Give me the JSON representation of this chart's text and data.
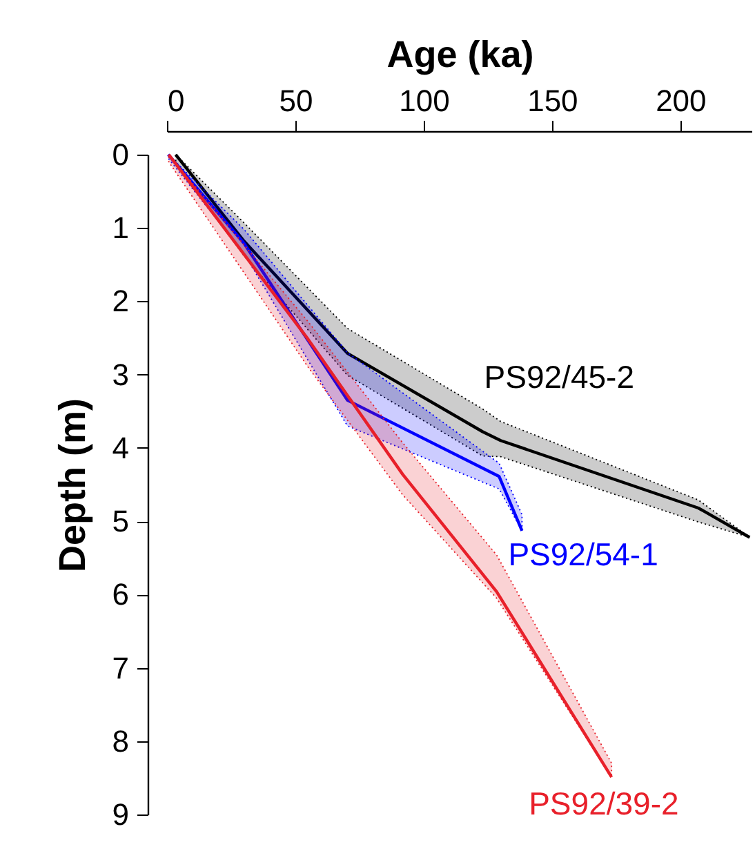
{
  "chart_data": {
    "type": "line",
    "xlabel": "Age (ka)",
    "ylabel": "Depth (m)",
    "xlim": [
      0,
      228
    ],
    "xticks": [
      0,
      50,
      100,
      150,
      200
    ],
    "ylim": [
      9,
      0
    ],
    "yticks": [
      0,
      1,
      2,
      3,
      4,
      5,
      6,
      7,
      8,
      9
    ],
    "grid": false,
    "line_style": "solid",
    "marker": "none",
    "series": [
      {
        "name": "PS92/45-2",
        "color": "#000000",
        "x": [
          3.4,
          30,
          70.3,
          123,
          130,
          207,
          227
        ],
        "values": [
          0,
          1.18,
          2.71,
          3.78,
          3.9,
          4.82,
          5.22
        ],
        "lower": [
          0,
          0.93,
          2.37,
          3.47,
          3.64,
          4.71,
          5.22
        ],
        "upper": [
          0.11,
          1.38,
          3.01,
          4.11,
          4.12,
          5.01,
          5.22
        ]
      },
      {
        "name": "PS92/54-1",
        "color": "#0000ff",
        "x": [
          0.5,
          30,
          70.3,
          129.4,
          138.3
        ],
        "values": [
          0,
          1.21,
          3.35,
          4.39,
          5.13
        ],
        "lower": [
          0,
          1.02,
          2.7,
          4.21,
          4.91
        ],
        "upper": [
          0.05,
          1.35,
          3.7,
          4.56,
          5.13
        ]
      },
      {
        "name": "PS92/39-2",
        "color": "#e8202a",
        "x": [
          0.7,
          55,
          91.8,
          128.4,
          173.2
        ],
        "values": [
          0,
          2.52,
          4.36,
          5.96,
          8.49
        ],
        "lower": [
          0,
          2.28,
          3.93,
          5.46,
          8.3
        ],
        "upper": [
          0.1,
          2.9,
          4.64,
          6.05,
          8.49
        ]
      }
    ]
  }
}
